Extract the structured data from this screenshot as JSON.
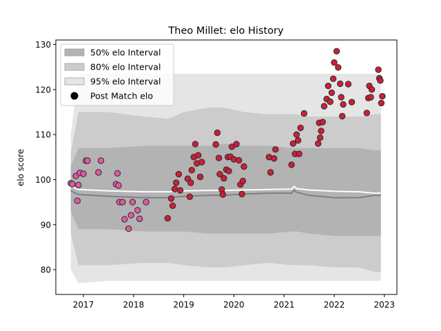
{
  "chart_data": {
    "type": "scatter",
    "title": "Theo Millet: elo History",
    "xlabel": "",
    "ylabel": "elo score",
    "xlim": [
      2016.45,
      2023.25
    ],
    "ylim": [
      74.5,
      131.0
    ],
    "x_ticks": [
      2017,
      2018,
      2019,
      2020,
      2021,
      2022,
      2023
    ],
    "y_ticks": [
      80,
      90,
      100,
      110,
      120,
      130
    ],
    "grid": false,
    "legend_position": "top-left",
    "legend": [
      {
        "label": "50% elo Interval",
        "kind": "band",
        "color": "#b3b3b3"
      },
      {
        "label": "80% elo Interval",
        "kind": "band",
        "color": "#cccccc"
      },
      {
        "label": "95% elo Interval",
        "kind": "band",
        "color": "#e5e5e5"
      },
      {
        "label": "Post Match elo",
        "kind": "marker",
        "color": "#000000"
      }
    ],
    "bands": {
      "x": [
        2016.75,
        2016.9,
        2017.5,
        2018.2,
        2018.7,
        2019.0,
        2019.5,
        2019.8,
        2020.2,
        2020.7,
        2021.15,
        2021.25,
        2021.5,
        2022.0,
        2022.5,
        2022.8,
        2022.93
      ],
      "p95": {
        "upper": [
          110,
          123.5,
          123.5,
          123.5,
          123.5,
          123.5,
          123.5,
          123.5,
          123.5,
          123.5,
          123.5,
          123.5,
          123.5,
          123.5,
          123.5,
          123.5,
          123.5
        ],
        "lower": [
          80,
          77,
          77.5,
          77.5,
          77.5,
          77.5,
          77.5,
          77.5,
          77.5,
          77.5,
          77.5,
          77.5,
          77.5,
          77.5,
          77.5,
          77.5,
          77.5
        ]
      },
      "p80": {
        "upper": [
          106,
          115,
          115,
          114,
          113.5,
          115,
          116,
          116,
          115,
          114.5,
          114.5,
          114.5,
          114,
          114,
          114,
          114.5,
          114.5
        ],
        "lower": [
          88,
          81,
          81,
          81.5,
          81.5,
          81,
          80.5,
          80.5,
          81,
          81.5,
          81,
          81,
          81,
          80.5,
          80.5,
          79.5,
          79.5
        ]
      },
      "p50": {
        "upper": [
          103,
          107,
          107,
          107.5,
          107.5,
          107.5,
          107.5,
          108,
          107.5,
          107.5,
          107,
          107,
          107,
          107,
          107,
          106.5,
          106.5
        ],
        "lower": [
          93,
          89,
          89,
          88.5,
          88.5,
          88.5,
          88,
          88,
          88,
          88,
          88.5,
          88.5,
          88,
          87.5,
          87.5,
          87.5,
          87.5
        ]
      }
    },
    "center_lines": [
      {
        "color": "#ffffff",
        "x": [
          2016.75,
          2016.9,
          2017.5,
          2018.2,
          2018.7,
          2019.0,
          2019.5,
          2019.8,
          2020.2,
          2020.7,
          2021.15,
          2021.2,
          2021.25,
          2021.5,
          2022.0,
          2022.5,
          2022.8,
          2022.93
        ],
        "y": [
          98.5,
          97.8,
          97.5,
          97.3,
          97.3,
          97.5,
          97.6,
          97.6,
          97.7,
          97.8,
          97.9,
          98.5,
          98.0,
          97.7,
          97.4,
          97.3,
          97.0,
          97.0
        ]
      },
      {
        "color": "#808080",
        "x": [
          2016.75,
          2016.9,
          2017.5,
          2018.2,
          2018.7,
          2019.0,
          2019.5,
          2019.8,
          2020.2,
          2020.7,
          2021.15,
          2021.2,
          2021.25,
          2021.5,
          2022.0,
          2022.5,
          2022.8,
          2022.93
        ],
        "y": [
          97.5,
          96.7,
          96.3,
          96.0,
          96.0,
          96.3,
          96.5,
          96.5,
          96.8,
          97.0,
          97.0,
          97.6,
          97.2,
          96.5,
          96.0,
          96.0,
          96.5,
          96.5
        ]
      }
    ],
    "series": [
      {
        "marker_color": "#e05aa3",
        "points": [
          [
            2016.75,
            99.2
          ],
          [
            2016.78,
            99.0
          ],
          [
            2016.85,
            100.8
          ],
          [
            2016.88,
            95.3
          ],
          [
            2016.9,
            98.8
          ],
          [
            2016.93,
            101.5
          ],
          [
            2017.0,
            101.3
          ],
          [
            2017.05,
            104.2
          ],
          [
            2017.08,
            104.2
          ],
          [
            2017.3,
            101.6
          ],
          [
            2017.35,
            104.2
          ],
          [
            2017.65,
            99.0
          ],
          [
            2017.68,
            101.4
          ],
          [
            2017.7,
            98.7
          ],
          [
            2017.72,
            95.0
          ],
          [
            2017.78,
            95.0
          ],
          [
            2017.82,
            91.2
          ],
          [
            2017.9,
            89.1
          ],
          [
            2017.95,
            92.1
          ],
          [
            2017.98,
            95.0
          ],
          [
            2018.08,
            93.2
          ],
          [
            2018.12,
            91.3
          ],
          [
            2018.25,
            95.0
          ]
        ]
      },
      {
        "marker_color": "#cc1f39",
        "points": [
          [
            2018.68,
            91.4
          ],
          [
            2018.75,
            95.8
          ],
          [
            2018.78,
            94.2
          ],
          [
            2018.82,
            97.9
          ],
          [
            2018.85,
            99.3
          ],
          [
            2018.9,
            101.2
          ],
          [
            2018.93,
            97.6
          ],
          [
            2019.08,
            100.2
          ],
          [
            2019.12,
            96.2
          ],
          [
            2019.14,
            99.3
          ],
          [
            2019.16,
            102.1
          ],
          [
            2019.2,
            105.0
          ],
          [
            2019.23,
            107.9
          ],
          [
            2019.26,
            103.6
          ],
          [
            2019.29,
            105.4
          ],
          [
            2019.33,
            100.6
          ],
          [
            2019.36,
            103.9
          ],
          [
            2019.64,
            107.8
          ],
          [
            2019.67,
            110.4
          ],
          [
            2019.7,
            104.8
          ],
          [
            2019.72,
            101.2
          ],
          [
            2019.76,
            97.8
          ],
          [
            2019.78,
            96.7
          ],
          [
            2019.8,
            100.3
          ],
          [
            2019.85,
            102.2
          ],
          [
            2019.88,
            105.0
          ],
          [
            2019.9,
            101.9
          ],
          [
            2019.93,
            105.1
          ],
          [
            2019.96,
            107.3
          ],
          [
            2020.0,
            104.5
          ],
          [
            2020.05,
            107.9
          ],
          [
            2020.1,
            104.3
          ],
          [
            2020.13,
            98.9
          ],
          [
            2020.16,
            96.8
          ],
          [
            2020.18,
            99.7
          ],
          [
            2020.2,
            102.9
          ],
          [
            2020.7,
            105.0
          ],
          [
            2020.73,
            101.6
          ],
          [
            2020.8,
            104.7
          ],
          [
            2020.83,
            106.7
          ],
          [
            2021.15,
            103.3
          ],
          [
            2021.18,
            108.0
          ],
          [
            2021.22,
            105.7
          ],
          [
            2021.25,
            110.0
          ],
          [
            2021.28,
            108.7
          ],
          [
            2021.3,
            105.7
          ],
          [
            2021.33,
            111.5
          ],
          [
            2021.4,
            114.7
          ],
          [
            2021.68,
            108.0
          ],
          [
            2021.7,
            112.6
          ],
          [
            2021.72,
            109.3
          ],
          [
            2021.74,
            110.8
          ],
          [
            2021.77,
            112.8
          ],
          [
            2021.8,
            116.3
          ],
          [
            2021.85,
            117.9
          ],
          [
            2021.88,
            120.8
          ],
          [
            2021.92,
            117.3
          ],
          [
            2021.95,
            119.3
          ],
          [
            2021.98,
            122.4
          ],
          [
            2022.0,
            126.0
          ],
          [
            2022.05,
            128.5
          ],
          [
            2022.08,
            124.9
          ],
          [
            2022.12,
            121.3
          ],
          [
            2022.14,
            118.3
          ],
          [
            2022.16,
            114.1
          ],
          [
            2022.18,
            116.7
          ],
          [
            2022.28,
            121.2
          ],
          [
            2022.35,
            117.2
          ],
          [
            2022.65,
            114.8
          ],
          [
            2022.68,
            118.1
          ],
          [
            2022.7,
            120.8
          ],
          [
            2022.73,
            118.3
          ],
          [
            2022.75,
            120.0
          ],
          [
            2022.88,
            124.4
          ],
          [
            2022.9,
            122.5
          ],
          [
            2022.92,
            122.0
          ],
          [
            2022.94,
            117.0
          ],
          [
            2022.96,
            118.5
          ]
        ]
      }
    ]
  }
}
